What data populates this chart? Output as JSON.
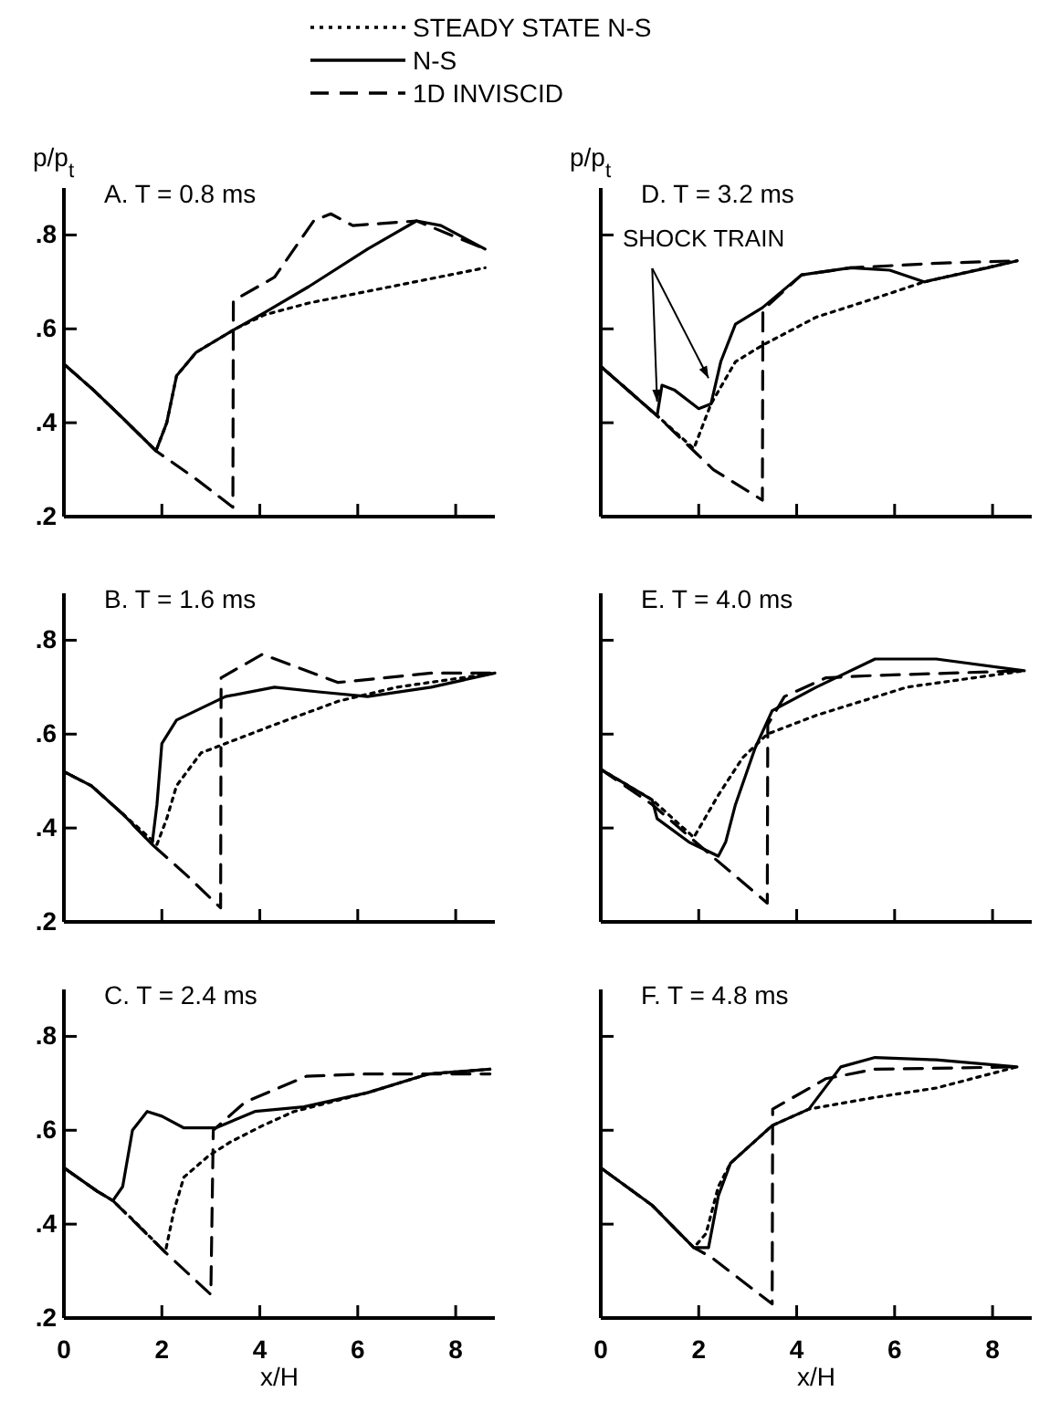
{
  "chart_data": [
    {
      "type": "line",
      "title": "A. T = 0.8 ms",
      "ylabel": "p/p$_{t}$",
      "xlim": [
        0,
        8.8
      ],
      "ylim": [
        0.2,
        0.9
      ],
      "xticks": [
        {
          "value": 0,
          "label": null
        },
        {
          "value": 2,
          "label": null
        },
        {
          "value": 4,
          "label": null
        },
        {
          "value": 6,
          "label": null
        },
        {
          "value": 8,
          "label": null
        }
      ],
      "yticks": [
        {
          "value": 0.2,
          "label": ".2"
        },
        {
          "value": 0.4,
          "label": ".4"
        },
        {
          "value": 0.6,
          "label": ".6"
        },
        {
          "value": 0.8,
          "label": ".8"
        }
      ],
      "tick_labels": "y",
      "grid": false,
      "legend": "top",
      "series": [
        {
          "name": "STEADY STATE N-S",
          "color": "#000000",
          "line_style": "dotted",
          "x": [
            0,
            0.6,
            1.2,
            1.88,
            2.1,
            2.3,
            2.7,
            3.5,
            4.1,
            5.0,
            6.2,
            7.4,
            8.6
          ],
          "values": [
            0.525,
            0.47,
            0.41,
            0.34,
            0.4,
            0.5,
            0.55,
            0.6,
            0.63,
            0.655,
            0.68,
            0.705,
            0.73
          ]
        },
        {
          "name": "N-S",
          "color": "#000000",
          "line_style": "solid",
          "x": [
            0,
            0.6,
            1.2,
            1.88,
            2.1,
            2.3,
            2.7,
            3.5,
            4.1,
            5.0,
            6.2,
            7.2,
            7.7,
            8.6
          ],
          "values": [
            0.525,
            0.47,
            0.41,
            0.34,
            0.4,
            0.5,
            0.55,
            0.6,
            0.635,
            0.69,
            0.77,
            0.83,
            0.82,
            0.77
          ]
        },
        {
          "name": "1D INVISCID",
          "color": "#000000",
          "line_style": "dashed",
          "x": [
            0,
            0.6,
            1.2,
            1.88,
            2.7,
            3.45,
            3.46,
            4.3,
            5.1,
            5.45,
            5.9,
            7.2,
            8.6
          ],
          "values": [
            0.525,
            0.47,
            0.41,
            0.34,
            0.28,
            0.22,
            0.66,
            0.71,
            0.83,
            0.845,
            0.82,
            0.83,
            0.77
          ]
        }
      ]
    },
    {
      "type": "line",
      "title": "B. T = 1.6 ms",
      "xlim": [
        0,
        8.8
      ],
      "ylim": [
        0.2,
        0.9
      ],
      "xticks": [
        {
          "value": 0,
          "label": null
        },
        {
          "value": 2,
          "label": null
        },
        {
          "value": 4,
          "label": null
        },
        {
          "value": 6,
          "label": null
        },
        {
          "value": 8,
          "label": null
        }
      ],
      "yticks": [
        {
          "value": 0.2,
          "label": ".2"
        },
        {
          "value": 0.4,
          "label": ".4"
        },
        {
          "value": 0.6,
          "label": ".6"
        },
        {
          "value": 0.8,
          "label": ".8"
        }
      ],
      "tick_labels": "y",
      "grid": false,
      "series": [
        {
          "color": "#000000",
          "line_style": "dotted",
          "x": [
            0,
            0.56,
            1.2,
            1.9,
            2.1,
            2.3,
            2.8,
            3.3,
            4.3,
            5.6,
            6.8,
            8.8
          ],
          "values": [
            0.52,
            0.49,
            0.43,
            0.365,
            0.42,
            0.49,
            0.56,
            0.58,
            0.62,
            0.67,
            0.7,
            0.73
          ]
        },
        {
          "color": "#000000",
          "line_style": "solid",
          "x": [
            0,
            0.56,
            1.2,
            1.8,
            1.9,
            2.0,
            2.3,
            3.3,
            4.3,
            5.2,
            6.2,
            7.5,
            8.8
          ],
          "values": [
            0.52,
            0.49,
            0.43,
            0.365,
            0.45,
            0.58,
            0.63,
            0.68,
            0.7,
            0.69,
            0.68,
            0.7,
            0.73
          ]
        },
        {
          "color": "#000000",
          "line_style": "dashed",
          "x": [
            0,
            0.56,
            1.2,
            1.8,
            2.5,
            3.2,
            3.21,
            4.05,
            5.6,
            7.5,
            8.8
          ],
          "values": [
            0.52,
            0.49,
            0.43,
            0.365,
            0.3,
            0.23,
            0.72,
            0.77,
            0.71,
            0.73,
            0.73
          ]
        }
      ]
    },
    {
      "type": "line",
      "title": "C. T = 2.4 ms",
      "xlabel": "x/H",
      "xlim": [
        0,
        8.8
      ],
      "ylim": [
        0.2,
        0.9
      ],
      "xticks": [
        0,
        2,
        4,
        6,
        8
      ],
      "yticks": [
        {
          "value": 0.2,
          "label": ".2"
        },
        {
          "value": 0.4,
          "label": ".4"
        },
        {
          "value": 0.6,
          "label": ".6"
        },
        {
          "value": 0.8,
          "label": ".8"
        }
      ],
      "grid": false,
      "series": [
        {
          "color": "#000000",
          "line_style": "dotted",
          "x": [
            0,
            0.68,
            1.0,
            1.5,
            2.07,
            2.25,
            2.45,
            2.95,
            3.4,
            4.06,
            4.7,
            6.2,
            7.45,
            8.7
          ],
          "values": [
            0.52,
            0.47,
            0.45,
            0.4,
            0.34,
            0.43,
            0.5,
            0.545,
            0.575,
            0.61,
            0.64,
            0.68,
            0.72,
            0.73
          ]
        },
        {
          "color": "#000000",
          "line_style": "solid",
          "x": [
            0,
            0.68,
            1.0,
            1.2,
            1.4,
            1.7,
            2.0,
            2.45,
            3.1,
            3.9,
            4.9,
            6.2,
            7.45,
            8.7
          ],
          "values": [
            0.52,
            0.47,
            0.45,
            0.48,
            0.6,
            0.64,
            0.63,
            0.605,
            0.605,
            0.64,
            0.65,
            0.68,
            0.72,
            0.73
          ]
        },
        {
          "color": "#000000",
          "line_style": "dashed",
          "x": [
            0,
            0.68,
            1.0,
            2.07,
            3.0,
            3.05,
            3.7,
            4.95,
            6.2,
            8.7
          ],
          "values": [
            0.52,
            0.47,
            0.45,
            0.34,
            0.25,
            0.6,
            0.66,
            0.715,
            0.72,
            0.72
          ]
        }
      ]
    },
    {
      "type": "line",
      "title": "D. T = 3.2 ms",
      "ylabel": "p/p$_{t}$",
      "annotations": [
        {
          "text": "SHOCK TRAIN",
          "x": 2.2,
          "y": 0.495
        }
      ],
      "xlim": [
        0,
        8.8
      ],
      "ylim": [
        0.2,
        0.9
      ],
      "xticks": [
        {
          "value": 0,
          "label": null
        },
        {
          "value": 2,
          "label": null
        },
        {
          "value": 4,
          "label": null
        },
        {
          "value": 6,
          "label": null
        },
        {
          "value": 8,
          "label": null
        }
      ],
      "yticks": [
        {
          "value": 0.2,
          "label": null
        },
        {
          "value": 0.4,
          "label": null
        },
        {
          "value": 0.6,
          "label": null
        },
        {
          "value": 0.8,
          "label": null
        }
      ],
      "tick_labels": false,
      "grid": false,
      "series": [
        {
          "color": "#000000",
          "line_style": "dotted",
          "x": [
            0,
            1.15,
            1.9,
            2.25,
            2.75,
            3.3,
            4.4,
            5.6,
            6.6,
            8.5
          ],
          "values": [
            0.52,
            0.415,
            0.345,
            0.44,
            0.53,
            0.565,
            0.625,
            0.665,
            0.7,
            0.745
          ]
        },
        {
          "color": "#000000",
          "line_style": "solid",
          "x": [
            0,
            1.15,
            1.25,
            1.5,
            2.0,
            2.25,
            2.45,
            2.75,
            3.3,
            4.1,
            5.1,
            5.9,
            6.6,
            7.9,
            8.5
          ],
          "values": [
            0.52,
            0.415,
            0.48,
            0.47,
            0.43,
            0.44,
            0.53,
            0.61,
            0.645,
            0.715,
            0.73,
            0.725,
            0.7,
            0.73,
            0.745
          ]
        },
        {
          "color": "#000000",
          "line_style": "dashed",
          "x": [
            0,
            1.15,
            2.3,
            3.3,
            3.31,
            4.1,
            5.1,
            6.9,
            8.5
          ],
          "values": [
            0.52,
            0.415,
            0.3,
            0.235,
            0.64,
            0.715,
            0.73,
            0.74,
            0.745
          ]
        }
      ]
    },
    {
      "type": "line",
      "title": "E. T = 4.0 ms",
      "xlim": [
        0,
        8.8
      ],
      "ylim": [
        0.2,
        0.9
      ],
      "xticks": [
        {
          "value": 0,
          "label": null
        },
        {
          "value": 2,
          "label": null
        },
        {
          "value": 4,
          "label": null
        },
        {
          "value": 6,
          "label": null
        },
        {
          "value": 8,
          "label": null
        }
      ],
      "yticks": [
        {
          "value": 0.2,
          "label": null
        },
        {
          "value": 0.4,
          "label": null
        },
        {
          "value": 0.6,
          "label": null
        },
        {
          "value": 0.8,
          "label": null
        }
      ],
      "tick_labels": false,
      "grid": false,
      "series": [
        {
          "color": "#000000",
          "line_style": "dotted",
          "x": [
            0,
            1.05,
            1.9,
            2.4,
            2.9,
            3.4,
            4.4,
            6.25,
            8.65
          ],
          "values": [
            0.525,
            0.46,
            0.38,
            0.47,
            0.55,
            0.6,
            0.64,
            0.7,
            0.735
          ]
        },
        {
          "color": "#000000",
          "line_style": "solid",
          "x": [
            0,
            1.05,
            1.15,
            1.8,
            2.4,
            2.55,
            2.75,
            3.15,
            3.5,
            4.4,
            5.6,
            6.85,
            8.65
          ],
          "values": [
            0.525,
            0.46,
            0.42,
            0.37,
            0.34,
            0.37,
            0.45,
            0.57,
            0.65,
            0.7,
            0.76,
            0.76,
            0.735
          ]
        },
        {
          "color": "#000000",
          "line_style": "dashed",
          "x": [
            0,
            1.05,
            2.27,
            3.4,
            3.41,
            3.75,
            4.6,
            5.6,
            8.65
          ],
          "values": [
            0.525,
            0.45,
            0.34,
            0.24,
            0.62,
            0.68,
            0.72,
            0.725,
            0.735
          ]
        }
      ]
    },
    {
      "type": "line",
      "title": "F. T = 4.8 ms",
      "xlabel": "x/H",
      "xlim": [
        0,
        8.8
      ],
      "ylim": [
        0.2,
        0.9
      ],
      "xticks": [
        0,
        2,
        4,
        6,
        8
      ],
      "yticks": [
        {
          "value": 0.2,
          "label": null
        },
        {
          "value": 0.4,
          "label": null
        },
        {
          "value": 0.6,
          "label": null
        },
        {
          "value": 0.8,
          "label": null
        }
      ],
      "tick_labels": "x",
      "grid": false,
      "series": [
        {
          "color": "#000000",
          "line_style": "dotted",
          "x": [
            0,
            1.05,
            1.9,
            2.15,
            2.4,
            2.65,
            3.5,
            4.25,
            5.6,
            6.85,
            8.5
          ],
          "values": [
            0.52,
            0.44,
            0.35,
            0.38,
            0.48,
            0.53,
            0.61,
            0.645,
            0.67,
            0.69,
            0.735
          ]
        },
        {
          "color": "#000000",
          "line_style": "solid",
          "x": [
            0,
            1.05,
            1.9,
            2.2,
            2.4,
            2.65,
            3.5,
            4.25,
            4.9,
            5.6,
            6.85,
            8.5
          ],
          "values": [
            0.52,
            0.44,
            0.35,
            0.35,
            0.46,
            0.53,
            0.61,
            0.645,
            0.735,
            0.755,
            0.75,
            0.735
          ]
        },
        {
          "color": "#000000",
          "line_style": "dashed",
          "x": [
            0,
            1.05,
            1.9,
            2.25,
            3.5,
            3.51,
            4.6,
            5.6,
            8.5
          ],
          "values": [
            0.52,
            0.44,
            0.35,
            0.33,
            0.23,
            0.645,
            0.71,
            0.73,
            0.735
          ]
        }
      ]
    }
  ]
}
